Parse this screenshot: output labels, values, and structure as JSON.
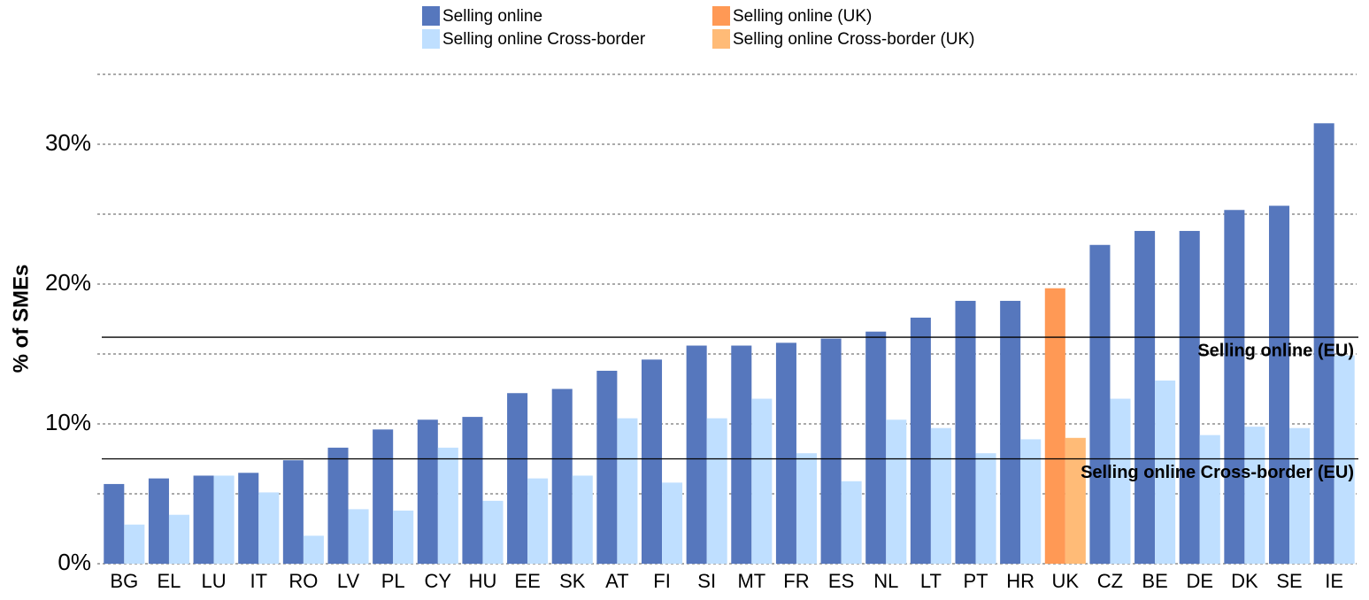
{
  "chart_data": {
    "type": "bar",
    "y_label": "% of SMEs",
    "categories": [
      "BG",
      "EL",
      "LU",
      "IT",
      "RO",
      "LV",
      "PL",
      "CY",
      "HU",
      "EE",
      "SK",
      "AT",
      "FI",
      "SI",
      "MT",
      "FR",
      "ES",
      "NL",
      "LT",
      "PT",
      "HR",
      "UK",
      "CZ",
      "BE",
      "DE",
      "DK",
      "SE",
      "IE"
    ],
    "series": [
      {
        "name": "Selling online",
        "color": "#5677bd",
        "values": [
          5.7,
          6.1,
          6.3,
          6.5,
          7.4,
          8.3,
          9.6,
          10.3,
          10.5,
          12.2,
          12.5,
          13.8,
          14.6,
          15.6,
          15.6,
          15.8,
          16.1,
          16.6,
          17.6,
          18.8,
          18.8,
          null,
          22.8,
          23.8,
          23.8,
          25.3,
          25.6,
          31.5
        ]
      },
      {
        "name": "Selling online Cross-border",
        "color": "#bfdfff",
        "values": [
          2.8,
          3.5,
          6.3,
          5.1,
          2.0,
          3.9,
          3.8,
          8.3,
          4.5,
          6.1,
          6.3,
          10.4,
          5.8,
          10.4,
          11.8,
          7.9,
          5.9,
          10.3,
          9.7,
          7.9,
          8.9,
          null,
          11.8,
          13.1,
          9.2,
          9.8,
          9.7,
          14.9
        ]
      },
      {
        "name": "Selling online (UK)",
        "color": "#ff9955",
        "values": [
          null,
          null,
          null,
          null,
          null,
          null,
          null,
          null,
          null,
          null,
          null,
          null,
          null,
          null,
          null,
          null,
          null,
          null,
          null,
          null,
          null,
          19.7,
          null,
          null,
          null,
          null,
          null,
          null
        ]
      },
      {
        "name": "Selling online Cross-border (UK)",
        "color": "#ffbb77",
        "values": [
          null,
          null,
          null,
          null,
          null,
          null,
          null,
          null,
          null,
          null,
          null,
          null,
          null,
          null,
          null,
          null,
          null,
          null,
          null,
          null,
          null,
          9.0,
          null,
          null,
          null,
          null,
          null,
          null
        ]
      }
    ],
    "reference_lines": [
      {
        "label": "Selling online (EU)",
        "value": 16.2
      },
      {
        "label": "Selling online Cross-border (EU)",
        "value": 7.5
      }
    ],
    "ylim": [
      0,
      35
    ],
    "yticks": [
      {
        "value": 0,
        "label": "0%"
      },
      {
        "value": 10,
        "label": "10%"
      },
      {
        "value": 20,
        "label": "20%"
      },
      {
        "value": 30,
        "label": "30%"
      }
    ],
    "minor_yticks": [
      5,
      15,
      25,
      35
    ],
    "grid": true
  }
}
